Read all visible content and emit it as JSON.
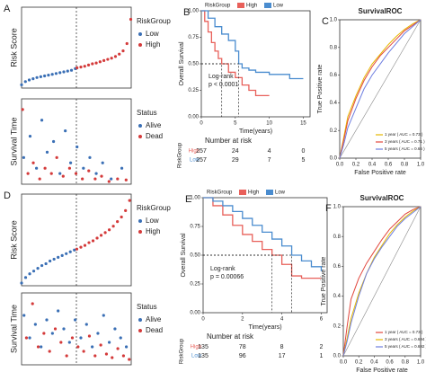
{
  "chart_data": [
    {
      "panel": "A",
      "type": "scatter",
      "ylabel": "Risk Score",
      "legend_title": "RiskGroup",
      "xlim": [
        0,
        514
      ],
      "ylim": [
        0,
        10
      ],
      "series": [
        {
          "name": "Low",
          "color": "#3a6fb5",
          "x": [
            0,
            18,
            36,
            54,
            72,
            90,
            108,
            126,
            144,
            162,
            180,
            198,
            216,
            234,
            252
          ],
          "values": [
            0.4,
            0.8,
            1.0,
            1.15,
            1.3,
            1.4,
            1.5,
            1.6,
            1.7,
            1.8,
            1.9,
            2.0,
            2.1,
            2.2,
            2.4
          ]
        },
        {
          "name": "High",
          "color": "#d43a3a",
          "x": [
            260,
            278,
            296,
            314,
            332,
            350,
            368,
            386,
            404,
            422,
            440,
            458,
            476,
            494,
            512
          ],
          "values": [
            2.5,
            2.6,
            2.7,
            2.85,
            3.0,
            3.1,
            3.25,
            3.4,
            3.55,
            3.7,
            3.9,
            4.2,
            4.6,
            5.5,
            8.5
          ]
        }
      ]
    },
    {
      "type": "scatter",
      "ylabel": "Survival Time",
      "legend_title": "Status",
      "xlim": [
        0,
        514
      ],
      "ylim": [
        0,
        16
      ],
      "series": [
        {
          "name": "Alive",
          "color": "#3a6fb5",
          "x": [
            10,
            40,
            70,
            95,
            120,
            150,
            180,
            205,
            230,
            260,
            290,
            320,
            350,
            380,
            420,
            470
          ],
          "values": [
            5,
            9,
            3,
            12,
            6,
            8,
            2,
            10,
            4,
            7,
            3,
            5,
            2,
            4,
            1,
            3
          ]
        },
        {
          "name": "Dead",
          "color": "#d43a3a",
          "x": [
            5,
            30,
            55,
            85,
            110,
            140,
            165,
            195,
            225,
            255,
            285,
            315,
            345,
            375,
            410,
            450,
            490
          ],
          "values": [
            14,
            2,
            4,
            1,
            3,
            2,
            5,
            1.5,
            3,
            2,
            1,
            2.5,
            1,
            1.5,
            0.5,
            1,
            0.8
          ]
        }
      ]
    },
    {
      "panel": "B",
      "type": "step",
      "legend_title": "RiskGroup",
      "ylabel": "Overall Survival",
      "xlabel": "Time(years)",
      "xlim": [
        0,
        16
      ],
      "ylim": [
        0,
        1
      ],
      "xticks": [
        0,
        5,
        10,
        15
      ],
      "yticks": [
        {
          "value": 0,
          "label": "0.00"
        },
        {
          "value": 0.25,
          "label": "0.25"
        },
        {
          "value": 0.5,
          "label": "0.50"
        },
        {
          "value": 0.75,
          "label": "0.75"
        },
        {
          "value": 1,
          "label": "1.00"
        }
      ],
      "annotation": [
        "Log-rank",
        "p < 0.0001"
      ],
      "series": [
        {
          "name": "High",
          "color": "#e8605a",
          "x": [
            0,
            0.5,
            1,
            1.5,
            2,
            2.5,
            3,
            4,
            5,
            6,
            7,
            8,
            9,
            10
          ],
          "values": [
            1,
            0.9,
            0.8,
            0.7,
            0.62,
            0.55,
            0.5,
            0.42,
            0.37,
            0.3,
            0.25,
            0.2,
            0.2,
            0.2
          ]
        },
        {
          "name": "Low",
          "color": "#4a8ccf",
          "x": [
            0,
            1,
            2,
            3,
            4,
            5,
            5.5,
            6,
            7,
            8,
            10,
            12,
            13,
            14,
            15
          ],
          "values": [
            1,
            0.93,
            0.85,
            0.78,
            0.72,
            0.62,
            0.5,
            0.46,
            0.44,
            0.42,
            0.4,
            0.4,
            0.36,
            0.36,
            0.36
          ]
        }
      ],
      "risk_table": {
        "title": "Number at risk",
        "label": "RiskGroup",
        "rows": [
          {
            "name": "High",
            "values": [
              257,
              24,
              4,
              0
            ]
          },
          {
            "name": "Low",
            "values": [
              257,
              29,
              7,
              5
            ]
          }
        ]
      }
    },
    {
      "panel": "C",
      "type": "line",
      "title": "SurvivalROC",
      "xlabel": "False Positive rate",
      "ylabel": "True Positive rate",
      "xlim": [
        0,
        1
      ],
      "ylim": [
        0,
        1
      ],
      "xticks": [
        {
          "value": 0,
          "label": "0.0"
        },
        0.2,
        0.4,
        0.6,
        0.8,
        {
          "value": 1,
          "label": "1.0"
        }
      ],
      "yticks": [
        {
          "value": 0,
          "label": "0.0"
        },
        0.2,
        0.4,
        0.6,
        0.8,
        {
          "value": 1,
          "label": "1.0"
        }
      ],
      "series": [
        {
          "name": "1 year ( AUC = 0.73 )",
          "color": "#e6b800",
          "x": [
            0,
            0.05,
            0.1,
            0.2,
            0.3,
            0.4,
            0.5,
            0.6,
            0.7,
            0.8,
            0.9,
            1
          ],
          "values": [
            0,
            0.15,
            0.3,
            0.45,
            0.58,
            0.68,
            0.75,
            0.82,
            0.88,
            0.93,
            0.97,
            1
          ]
        },
        {
          "name": "3 years ( AUC = 0.71 )",
          "color": "#e2463c",
          "x": [
            0,
            0.05,
            0.1,
            0.2,
            0.3,
            0.4,
            0.5,
            0.6,
            0.7,
            0.8,
            0.9,
            1
          ],
          "values": [
            0,
            0.13,
            0.27,
            0.43,
            0.56,
            0.66,
            0.74,
            0.8,
            0.86,
            0.92,
            0.96,
            1
          ]
        },
        {
          "name": "5 years ( AUC = 0.66 )",
          "color": "#6f7fe0",
          "x": [
            0,
            0.05,
            0.1,
            0.2,
            0.3,
            0.4,
            0.5,
            0.6,
            0.7,
            0.8,
            0.9,
            1
          ],
          "values": [
            0,
            0.1,
            0.22,
            0.36,
            0.5,
            0.6,
            0.68,
            0.76,
            0.83,
            0.9,
            0.95,
            1
          ]
        }
      ]
    },
    {
      "panel": "D",
      "type": "scatter",
      "ylabel": "Risk Score",
      "legend_title": "RiskGroup",
      "xlim": [
        0,
        270
      ],
      "ylim": [
        0,
        10
      ],
      "series": [
        {
          "name": "Low",
          "color": "#3a6fb5",
          "x": [
            0,
            10,
            20,
            30,
            40,
            50,
            60,
            70,
            80,
            90,
            100,
            110,
            120,
            130
          ],
          "values": [
            0.3,
            0.9,
            1.3,
            1.6,
            1.9,
            2.2,
            2.4,
            2.7,
            2.9,
            3.1,
            3.3,
            3.5,
            3.7,
            3.9
          ]
        },
        {
          "name": "High",
          "color": "#d43a3a",
          "x": [
            136,
            146,
            156,
            166,
            176,
            186,
            196,
            206,
            216,
            226,
            236,
            246,
            256,
            266
          ],
          "values": [
            4.0,
            4.2,
            4.4,
            4.7,
            4.9,
            5.2,
            5.5,
            5.8,
            6.1,
            6.5,
            7.0,
            7.5,
            8.2,
            9.3
          ]
        }
      ]
    },
    {
      "type": "scatter",
      "ylabel": "Survival Time",
      "legend_title": "Status",
      "xlim": [
        0,
        270
      ],
      "ylim": [
        0,
        8
      ],
      "series": [
        {
          "name": "Alive",
          "color": "#3a6fb5",
          "x": [
            6,
            20,
            34,
            48,
            62,
            76,
            90,
            104,
            118,
            132,
            146,
            160,
            174,
            188,
            202,
            216,
            230,
            244,
            258
          ],
          "values": [
            5.5,
            3,
            4.5,
            2,
            5,
            3.5,
            6,
            4,
            2.5,
            5,
            3,
            4.5,
            2,
            3.5,
            5.5,
            2.5,
            4,
            3,
            2
          ]
        },
        {
          "name": "Dead",
          "color": "#d43a3a",
          "x": [
            12,
            27,
            41,
            55,
            69,
            83,
            97,
            111,
            125,
            139,
            153,
            167,
            181,
            195,
            209,
            223,
            237,
            251,
            265
          ],
          "values": [
            3,
            6.8,
            2,
            3.5,
            1.5,
            4,
            2.5,
            1,
            3,
            2,
            1.5,
            3.2,
            1,
            2.2,
            1.2,
            0.8,
            1.8,
            1,
            0.6
          ]
        }
      ]
    },
    {
      "panel": "E",
      "type": "step",
      "legend_title": "RiskGroup",
      "ylabel": "Overall Survival",
      "xlabel": "Time(years)",
      "xlim": [
        0,
        6.3
      ],
      "ylim": [
        0,
        1
      ],
      "xticks": [
        0,
        2,
        4,
        6
      ],
      "yticks": [
        {
          "value": 0,
          "label": "0.00"
        },
        {
          "value": 0.25,
          "label": "0.25"
        },
        {
          "value": 0.5,
          "label": "0.50"
        },
        {
          "value": 0.75,
          "label": "0.75"
        },
        {
          "value": 1,
          "label": "1.00"
        }
      ],
      "annotation": [
        "Log-rank",
        "p = 0.00066"
      ],
      "series": [
        {
          "name": "High",
          "color": "#e8605a",
          "x": [
            0,
            0.5,
            1,
            1.5,
            2,
            2.5,
            3,
            3.5,
            4,
            4.5,
            5,
            5.5,
            6
          ],
          "values": [
            1,
            0.93,
            0.85,
            0.76,
            0.68,
            0.62,
            0.55,
            0.5,
            0.42,
            0.32,
            0.3,
            0.3,
            0.3
          ]
        },
        {
          "name": "Low",
          "color": "#4a8ccf",
          "x": [
            0,
            0.5,
            1,
            1.5,
            2,
            2.5,
            3,
            3.5,
            4,
            4.5,
            5,
            5.5,
            6
          ],
          "values": [
            1,
            0.97,
            0.93,
            0.88,
            0.82,
            0.76,
            0.7,
            0.64,
            0.58,
            0.5,
            0.45,
            0.4,
            0.36
          ]
        }
      ],
      "risk_table": {
        "title": "Number at risk",
        "label": "RiskGroup",
        "rows": [
          {
            "name": "High",
            "values": [
              135,
              78,
              8,
              2
            ]
          },
          {
            "name": "Low",
            "values": [
              135,
              96,
              17,
              1
            ]
          }
        ]
      }
    },
    {
      "panel": "F",
      "type": "line",
      "title": "SurvivalROC",
      "xlabel": "False Positive rate",
      "ylabel": "True Positive rate",
      "xlim": [
        0,
        1
      ],
      "ylim": [
        0,
        1
      ],
      "xticks": [
        {
          "value": 0,
          "label": "0.0"
        },
        0.2,
        0.4,
        0.6,
        0.8,
        {
          "value": 1,
          "label": "1.0"
        }
      ],
      "yticks": [
        {
          "value": 0,
          "label": "0.0"
        },
        0.2,
        0.4,
        0.6,
        0.8,
        {
          "value": 1,
          "label": "1.0"
        }
      ],
      "series": [
        {
          "name": "1 year ( AUC = 0.73 )",
          "color": "#e2463c",
          "x": [
            0,
            0.05,
            0.1,
            0.2,
            0.3,
            0.4,
            0.5,
            0.6,
            0.7,
            0.8,
            0.9,
            1
          ],
          "values": [
            0,
            0.2,
            0.38,
            0.52,
            0.62,
            0.7,
            0.78,
            0.85,
            0.9,
            0.95,
            0.98,
            1
          ]
        },
        {
          "name": "3 years ( AUC = 0.694 )",
          "color": "#e6b800",
          "x": [
            0,
            0.05,
            0.1,
            0.2,
            0.3,
            0.4,
            0.5,
            0.6,
            0.7,
            0.8,
            0.9,
            1
          ],
          "values": [
            0,
            0.12,
            0.25,
            0.42,
            0.55,
            0.66,
            0.74,
            0.82,
            0.88,
            0.93,
            0.97,
            1
          ]
        },
        {
          "name": "5 years ( AUC = 0.692 )",
          "color": "#6f7fe0",
          "x": [
            0,
            0.05,
            0.1,
            0.2,
            0.3,
            0.4,
            0.5,
            0.6,
            0.7,
            0.8,
            0.9,
            1
          ],
          "values": [
            0,
            0.1,
            0.22,
            0.4,
            0.55,
            0.65,
            0.73,
            0.8,
            0.87,
            0.92,
            0.96,
            1
          ]
        }
      ]
    }
  ]
}
